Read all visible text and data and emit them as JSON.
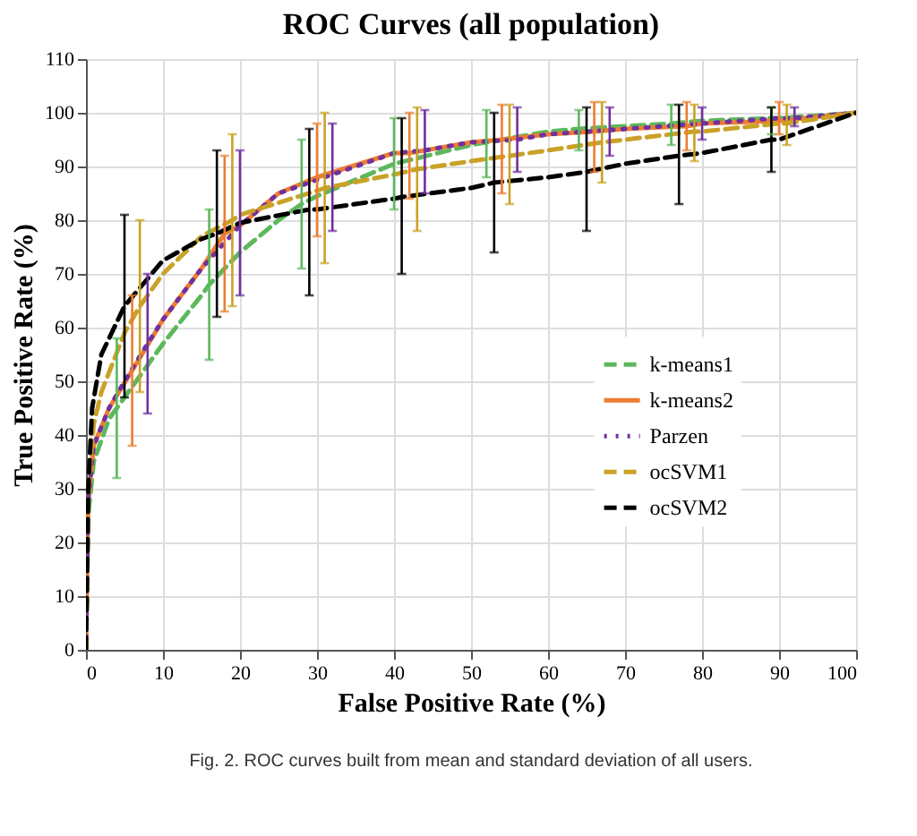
{
  "chart_data": {
    "type": "line",
    "title": "ROC Curves (all population)",
    "xlabel": "False Positive Rate (%)",
    "ylabel": "True Positive Rate (%)",
    "xlim": [
      0,
      100
    ],
    "xticks": [
      0,
      10,
      20,
      30,
      40,
      50,
      60,
      70,
      80,
      90,
      100
    ],
    "ylim": [
      0,
      110
    ],
    "yticks": [
      0,
      10,
      20,
      30,
      40,
      50,
      60,
      70,
      80,
      90,
      100,
      110
    ],
    "grid": true,
    "legend": "right",
    "annotations": [
      "Fig. 2.  ROC curves built from mean and standard deviation of all users."
    ],
    "series": [
      {
        "name": "k-means1",
        "color": "#5cb85c",
        "line_style": "dashed",
        "x": [
          0,
          0.3,
          1,
          3,
          4,
          5,
          10,
          15,
          16,
          20,
          25,
          28,
          30,
          40,
          50,
          52,
          60,
          64,
          70,
          76,
          80,
          89,
          90,
          100
        ],
        "values": [
          0,
          25,
          35,
          43,
          45,
          47,
          57,
          66,
          68,
          74,
          80,
          83,
          84.5,
          90.5,
          94,
          94.5,
          96.5,
          97,
          97.5,
          98,
          98.5,
          99,
          99,
          100
        ],
        "errors": [
          null,
          null,
          null,
          null,
          [
            32,
            58
          ],
          null,
          null,
          null,
          [
            54,
            82
          ],
          null,
          null,
          [
            71,
            95
          ],
          null,
          [
            82,
            99
          ],
          null,
          [
            88,
            100.5
          ],
          null,
          [
            93,
            100.5
          ],
          null,
          [
            94,
            101.5
          ],
          null,
          [
            96,
            101
          ],
          null,
          null
        ]
      },
      {
        "name": "k-means2",
        "color": "#ed7d31",
        "line_style": "solid",
        "x": [
          0,
          0.3,
          1,
          3,
          6,
          10,
          15,
          18,
          20,
          25,
          30,
          40,
          42,
          50,
          54,
          60,
          66,
          70,
          78,
          80,
          90,
          100
        ],
        "values": [
          0,
          28,
          38,
          45,
          52,
          61.5,
          71,
          77.5,
          79,
          85,
          88,
          92.5,
          92.5,
          94.5,
          95,
          96,
          96.5,
          97,
          97.5,
          98,
          98.5,
          100
        ],
        "errors": [
          null,
          null,
          null,
          null,
          [
            38,
            66
          ],
          null,
          null,
          [
            63,
            92
          ],
          null,
          null,
          [
            77,
            98
          ],
          null,
          [
            84,
            100
          ],
          null,
          [
            85,
            101.5
          ],
          null,
          [
            89,
            102
          ],
          null,
          [
            93,
            102
          ],
          null,
          [
            96,
            102
          ],
          null
        ]
      },
      {
        "name": "Parzen",
        "color": "#7030a0",
        "line_style": "dotted",
        "x": [
          0,
          0.3,
          1,
          3,
          5,
          8,
          10,
          15,
          20,
          25,
          32,
          40,
          44,
          50,
          56,
          60,
          68,
          70,
          80,
          90,
          92,
          100
        ],
        "values": [
          0,
          28,
          38,
          45,
          50,
          57,
          61.5,
          71,
          79,
          85,
          88.5,
          92.5,
          93,
          94.5,
          95,
          96,
          96.8,
          97,
          98,
          99,
          99,
          100
        ],
        "errors": [
          null,
          null,
          null,
          null,
          null,
          [
            44,
            70
          ],
          null,
          null,
          [
            66,
            93
          ],
          null,
          [
            78,
            98
          ],
          null,
          [
            85,
            100.5
          ],
          null,
          [
            89,
            101
          ],
          null,
          [
            92,
            101
          ],
          null,
          [
            95,
            101
          ],
          null,
          [
            97.5,
            101
          ],
          null
        ]
      },
      {
        "name": "ocSVM1",
        "color": "#c9a227",
        "line_style": "dashed",
        "x": [
          0,
          0.3,
          1,
          2,
          5,
          7,
          10,
          15,
          19,
          20,
          30,
          31,
          40,
          43,
          50,
          55,
          60,
          67,
          70,
          79,
          80,
          90,
          91,
          100
        ],
        "values": [
          0,
          30,
          42,
          48,
          59,
          64,
          70,
          77,
          80,
          81,
          85.5,
          86,
          88.5,
          89.5,
          91,
          92,
          93,
          94.5,
          95,
          96.5,
          96.5,
          98,
          98,
          100
        ],
        "errors": [
          null,
          null,
          null,
          null,
          null,
          [
            48,
            80
          ],
          null,
          null,
          [
            64,
            96
          ],
          null,
          null,
          [
            72,
            100
          ],
          null,
          [
            78,
            101
          ],
          null,
          [
            83,
            101.5
          ],
          null,
          [
            87,
            102
          ],
          null,
          [
            91,
            101.5
          ],
          null,
          null,
          [
            94,
            101.5
          ],
          null
        ]
      },
      {
        "name": "ocSVM2",
        "color": "#000000",
        "line_style": "dashed",
        "x": [
          0,
          0.3,
          0.8,
          2,
          5,
          10,
          15,
          17,
          20,
          29,
          30,
          40,
          41,
          50,
          53,
          60,
          65,
          70,
          77,
          80,
          89,
          90,
          100
        ],
        "values": [
          0,
          30,
          45,
          55,
          64,
          72.5,
          76.5,
          77.5,
          79.5,
          82,
          82,
          84,
          84.3,
          86,
          87,
          88,
          89,
          90.5,
          92,
          92.5,
          95,
          95,
          100
        ],
        "errors": [
          null,
          null,
          null,
          null,
          [
            47,
            81
          ],
          null,
          null,
          [
            62,
            93
          ],
          null,
          [
            66,
            97
          ],
          null,
          null,
          [
            70,
            99
          ],
          null,
          [
            74,
            100
          ],
          null,
          [
            78,
            101
          ],
          null,
          [
            83,
            101.5
          ],
          null,
          [
            89,
            101
          ],
          null,
          null
        ]
      }
    ]
  }
}
